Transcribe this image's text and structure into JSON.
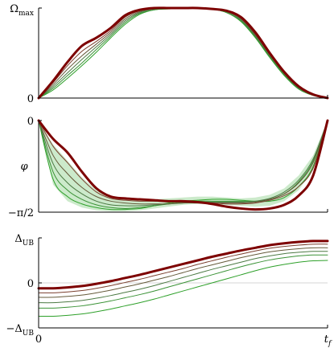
{
  "chart_data": [
    {
      "type": "line",
      "ylabel": "",
      "ytick_labels": [
        "Ωmax",
        "0"
      ],
      "yticks": [
        1,
        0
      ],
      "ylim": [
        0,
        1
      ],
      "xlim": [
        0,
        1
      ],
      "x": [
        0,
        0.05,
        0.1,
        0.15,
        0.2,
        0.25,
        0.3,
        0.35,
        0.4,
        0.45,
        0.5,
        0.55,
        0.6,
        0.65,
        0.7,
        0.75,
        0.8,
        0.85,
        0.9,
        0.95,
        1.0
      ],
      "series": [
        {
          "color": "#7d0000",
          "width": 3.0,
          "values": [
            0.0,
            0.19,
            0.4,
            0.58,
            0.67,
            0.78,
            0.92,
            0.98,
            1.0,
            1.0,
            1.0,
            1.0,
            0.99,
            0.97,
            0.9,
            0.73,
            0.5,
            0.29,
            0.13,
            0.04,
            0.0
          ]
        },
        {
          "color": "#7a3f2e",
          "width": 1.0,
          "values": [
            0.0,
            0.17,
            0.36,
            0.52,
            0.63,
            0.75,
            0.9,
            0.97,
            1.0,
            1.0,
            1.0,
            1.0,
            0.99,
            0.97,
            0.89,
            0.71,
            0.49,
            0.28,
            0.12,
            0.04,
            0.0
          ]
        },
        {
          "color": "#655a3a",
          "width": 1.0,
          "values": [
            0.0,
            0.15,
            0.32,
            0.47,
            0.6,
            0.73,
            0.88,
            0.96,
            0.99,
            1.0,
            1.0,
            1.0,
            0.99,
            0.96,
            0.88,
            0.7,
            0.48,
            0.27,
            0.12,
            0.04,
            0.0
          ]
        },
        {
          "color": "#4c7a44",
          "width": 1.0,
          "values": [
            0.0,
            0.13,
            0.28,
            0.43,
            0.57,
            0.71,
            0.86,
            0.95,
            0.99,
            1.0,
            1.0,
            1.0,
            0.99,
            0.96,
            0.87,
            0.69,
            0.47,
            0.27,
            0.11,
            0.03,
            0.0
          ]
        },
        {
          "color": "#3a9236",
          "width": 1.0,
          "values": [
            0.0,
            0.11,
            0.25,
            0.39,
            0.54,
            0.69,
            0.84,
            0.94,
            0.98,
            1.0,
            1.0,
            1.0,
            0.99,
            0.95,
            0.86,
            0.68,
            0.46,
            0.26,
            0.11,
            0.03,
            0.0
          ]
        },
        {
          "color": "#2ea02a",
          "width": 1.0,
          "values": [
            0.0,
            0.09,
            0.22,
            0.36,
            0.51,
            0.67,
            0.82,
            0.93,
            0.98,
            0.99,
            1.0,
            1.0,
            0.99,
            0.95,
            0.85,
            0.67,
            0.45,
            0.25,
            0.1,
            0.03,
            0.0
          ]
        }
      ],
      "band": null
    },
    {
      "type": "line",
      "ylabel": "φ",
      "ytick_labels": [
        "0",
        "−π/2"
      ],
      "yticks": [
        0,
        -1
      ],
      "ylim": [
        -1,
        0
      ],
      "xlim": [
        0,
        1
      ],
      "x": [
        0,
        0.05,
        0.1,
        0.15,
        0.2,
        0.25,
        0.3,
        0.35,
        0.4,
        0.45,
        0.5,
        0.55,
        0.6,
        0.65,
        0.7,
        0.75,
        0.8,
        0.85,
        0.9,
        0.95,
        1.0
      ],
      "series": [
        {
          "color": "#7d0000",
          "width": 3.0,
          "values": [
            0.0,
            -0.2,
            -0.35,
            -0.56,
            -0.74,
            -0.83,
            -0.85,
            -0.86,
            -0.87,
            -0.88,
            -0.88,
            -0.89,
            -0.91,
            -0.94,
            -0.96,
            -0.97,
            -0.96,
            -0.92,
            -0.82,
            -0.6,
            0.0
          ]
        },
        {
          "color": "#7a3f2e",
          "width": 1.0,
          "values": [
            0.0,
            -0.28,
            -0.46,
            -0.64,
            -0.78,
            -0.85,
            -0.87,
            -0.88,
            -0.88,
            -0.88,
            -0.88,
            -0.89,
            -0.9,
            -0.91,
            -0.91,
            -0.9,
            -0.87,
            -0.82,
            -0.72,
            -0.52,
            0.0
          ]
        },
        {
          "color": "#655a3a",
          "width": 1.0,
          "values": [
            0.0,
            -0.38,
            -0.58,
            -0.73,
            -0.83,
            -0.88,
            -0.9,
            -0.91,
            -0.91,
            -0.91,
            -0.9,
            -0.9,
            -0.9,
            -0.9,
            -0.9,
            -0.89,
            -0.86,
            -0.8,
            -0.68,
            -0.46,
            0.0
          ]
        },
        {
          "color": "#4c7a44",
          "width": 1.0,
          "values": [
            0.0,
            -0.47,
            -0.68,
            -0.8,
            -0.88,
            -0.92,
            -0.93,
            -0.93,
            -0.92,
            -0.91,
            -0.9,
            -0.89,
            -0.89,
            -0.89,
            -0.89,
            -0.88,
            -0.85,
            -0.78,
            -0.65,
            -0.42,
            0.0
          ]
        },
        {
          "color": "#3a9236",
          "width": 1.0,
          "values": [
            0.0,
            -0.56,
            -0.76,
            -0.86,
            -0.92,
            -0.95,
            -0.96,
            -0.95,
            -0.93,
            -0.91,
            -0.89,
            -0.88,
            -0.88,
            -0.88,
            -0.88,
            -0.88,
            -0.86,
            -0.8,
            -0.67,
            -0.44,
            0.0
          ]
        },
        {
          "color": "#2ea02a",
          "width": 1.0,
          "values": [
            0.0,
            -0.64,
            -0.83,
            -0.91,
            -0.95,
            -0.97,
            -0.97,
            -0.96,
            -0.93,
            -0.9,
            -0.88,
            -0.87,
            -0.86,
            -0.86,
            -0.87,
            -0.88,
            -0.88,
            -0.84,
            -0.72,
            -0.5,
            0.0
          ]
        }
      ],
      "band": {
        "color": "#8fd18b",
        "opacity": 0.45,
        "upper": [
          0.0,
          -0.26,
          -0.44,
          -0.62,
          -0.76,
          -0.84,
          -0.86,
          -0.86,
          -0.86,
          -0.85,
          -0.84,
          -0.83,
          -0.83,
          -0.84,
          -0.85,
          -0.84,
          -0.81,
          -0.74,
          -0.6,
          -0.38,
          0.0
        ],
        "lower": [
          0.0,
          -0.7,
          -0.88,
          -0.95,
          -0.98,
          -0.99,
          -0.99,
          -0.98,
          -0.96,
          -0.94,
          -0.92,
          -0.91,
          -0.91,
          -0.92,
          -0.93,
          -0.94,
          -0.93,
          -0.88,
          -0.76,
          -0.54,
          0.0
        ]
      }
    },
    {
      "type": "line",
      "ylabel": "",
      "ytick_labels": [
        "ΔUB",
        "0",
        "−ΔUB"
      ],
      "yticks": [
        1,
        0,
        -1
      ],
      "ylim": [
        -1,
        1
      ],
      "xlim": [
        0,
        1
      ],
      "xtick_labels": [
        "0",
        "tf"
      ],
      "xticks": [
        0,
        1
      ],
      "zero_line": true,
      "x": [
        0,
        0.05,
        0.1,
        0.15,
        0.2,
        0.25,
        0.3,
        0.35,
        0.4,
        0.45,
        0.5,
        0.55,
        0.6,
        0.65,
        0.7,
        0.75,
        0.8,
        0.85,
        0.9,
        0.95,
        1.0
      ],
      "series": [
        {
          "color": "#7d0000",
          "width": 3.0,
          "values": [
            -0.12,
            -0.12,
            -0.1,
            -0.07,
            -0.02,
            0.04,
            0.11,
            0.18,
            0.26,
            0.34,
            0.42,
            0.5,
            0.58,
            0.65,
            0.72,
            0.78,
            0.84,
            0.88,
            0.91,
            0.93,
            0.93
          ]
        },
        {
          "color": "#7a3f2e",
          "width": 1.0,
          "values": [
            -0.22,
            -0.22,
            -0.2,
            -0.17,
            -0.12,
            -0.06,
            0.01,
            0.08,
            0.16,
            0.24,
            0.32,
            0.41,
            0.49,
            0.57,
            0.64,
            0.71,
            0.77,
            0.81,
            0.84,
            0.86,
            0.86
          ]
        },
        {
          "color": "#655a3a",
          "width": 1.0,
          "values": [
            -0.32,
            -0.32,
            -0.3,
            -0.27,
            -0.22,
            -0.16,
            -0.09,
            -0.02,
            0.06,
            0.14,
            0.23,
            0.32,
            0.4,
            0.48,
            0.56,
            0.63,
            0.69,
            0.73,
            0.76,
            0.78,
            0.78
          ]
        },
        {
          "color": "#4c7a44",
          "width": 1.0,
          "values": [
            -0.44,
            -0.44,
            -0.42,
            -0.39,
            -0.34,
            -0.28,
            -0.21,
            -0.14,
            -0.06,
            0.03,
            0.12,
            0.21,
            0.3,
            0.38,
            0.46,
            0.54,
            0.6,
            0.65,
            0.68,
            0.7,
            0.7
          ]
        },
        {
          "color": "#3a9236",
          "width": 1.0,
          "values": [
            -0.56,
            -0.56,
            -0.54,
            -0.51,
            -0.46,
            -0.4,
            -0.33,
            -0.26,
            -0.18,
            -0.09,
            0.0,
            0.09,
            0.18,
            0.27,
            0.36,
            0.44,
            0.51,
            0.56,
            0.6,
            0.62,
            0.62
          ]
        },
        {
          "color": "#2ea02a",
          "width": 1.0,
          "values": [
            -0.74,
            -0.74,
            -0.72,
            -0.69,
            -0.64,
            -0.58,
            -0.51,
            -0.44,
            -0.36,
            -0.27,
            -0.18,
            -0.09,
            0.0,
            0.09,
            0.18,
            0.27,
            0.35,
            0.41,
            0.46,
            0.49,
            0.5
          ]
        }
      ],
      "band": null
    }
  ]
}
